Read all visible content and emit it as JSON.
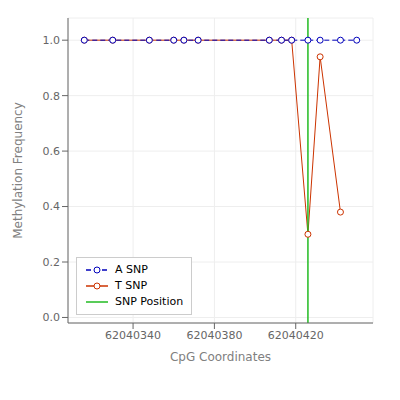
{
  "chart_data": {
    "type": "line",
    "xlabel": "CpG Coordinates",
    "ylabel": "Methylation Frequency",
    "xlim": [
      62040308,
      62040458
    ],
    "ylim": [
      -0.02,
      1.08
    ],
    "xticks": [
      62040340,
      62040380,
      62040420
    ],
    "yticks": [
      {
        "value": 0.0,
        "label": "0.0"
      },
      0.2,
      0.4,
      0.6,
      0.8,
      {
        "value": 1.0,
        "label": "1.0"
      }
    ],
    "legend": "lower left",
    "series": [
      {
        "name": "A SNP",
        "color": "#0000bb",
        "line_style": "dashed",
        "marker": "circle",
        "x": [
          62040316,
          62040330,
          62040348,
          62040360,
          62040365,
          62040372,
          62040407,
          62040413,
          62040418,
          62040426,
          62040432,
          62040442,
          62040450
        ],
        "values": [
          1.0,
          1.0,
          1.0,
          1.0,
          1.0,
          1.0,
          1.0,
          1.0,
          1.0,
          1.0,
          1.0,
          1.0,
          1.0
        ]
      },
      {
        "name": "T SNP",
        "color": "#cc3300",
        "line_style": "solid",
        "marker": "circle",
        "x": [
          62040316,
          62040330,
          62040348,
          62040360,
          62040365,
          62040372,
          62040407,
          62040413,
          62040418,
          62040426,
          62040432,
          62040442
        ],
        "values": [
          1.0,
          1.0,
          1.0,
          1.0,
          1.0,
          1.0,
          1.0,
          1.0,
          1.0,
          0.3,
          0.94,
          0.38
        ]
      },
      {
        "name": "SNP Position",
        "type": "vline",
        "color": "#22bb22",
        "x": [
          62040426
        ]
      }
    ]
  }
}
